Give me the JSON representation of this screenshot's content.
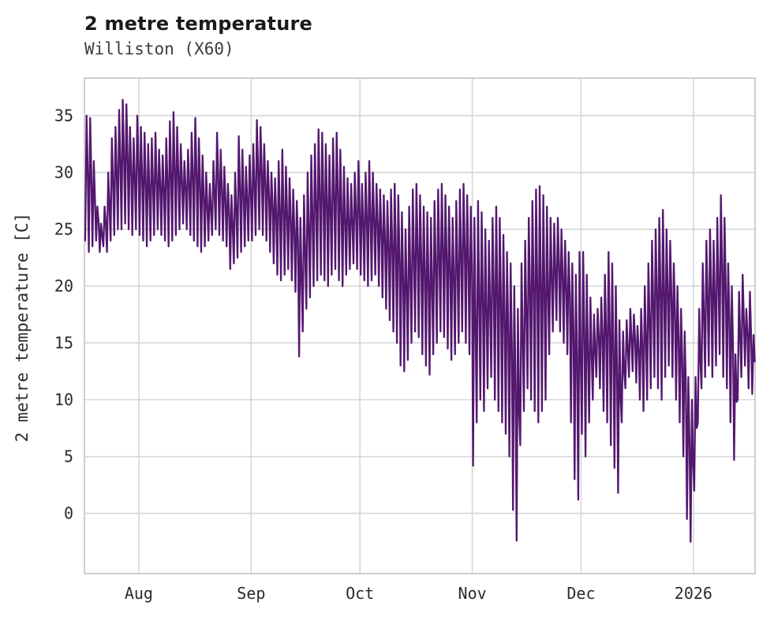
{
  "header": {
    "title": "2 metre temperature",
    "subtitle": "Williston (X60)"
  },
  "chart_data": {
    "type": "line",
    "title": "2 metre temperature",
    "subtitle": "Williston (X60)",
    "xlabel": "",
    "ylabel": "2 metre temperature [C]",
    "legend": "none",
    "grid": "on",
    "line_color": "#53176e",
    "grid_color": "#d6d6d6",
    "border_color": "#c9c9c9",
    "ylim": [
      -5.3,
      38.3
    ],
    "y_ticks": [
      0,
      5,
      10,
      15,
      20,
      25,
      30,
      35
    ],
    "x_ticks": [
      {
        "label": "Aug",
        "day": 15
      },
      {
        "label": "Sep",
        "day": 46
      },
      {
        "label": "Oct",
        "day": 76
      },
      {
        "label": "Nov",
        "day": 107
      },
      {
        "label": "Dec",
        "day": 137
      },
      {
        "label": "2026",
        "day": 168
      }
    ],
    "x_range_days": [
      0,
      185
    ],
    "x_start": "mid-July 2025",
    "x_end": "mid-January 2026",
    "series_note": "daily minimum and maximum 2 m temperature envelope, day 0 = ~17 July",
    "daily_min": [
      24,
      23,
      23.5,
      24,
      23,
      23.5,
      23,
      24,
      24.5,
      25,
      25,
      25.5,
      25,
      24.5,
      25,
      24.5,
      24,
      23.5,
      24,
      24.5,
      25,
      24.5,
      24,
      23.5,
      24,
      24.5,
      25,
      25.5,
      25,
      24.5,
      24,
      23.5,
      23,
      23.5,
      24,
      24.5,
      25,
      24.5,
      24,
      23.5,
      21.5,
      22,
      22.5,
      23,
      23.5,
      24,
      24,
      24.5,
      25,
      24.5,
      24,
      23,
      22,
      21,
      20.5,
      21,
      21.5,
      20.5,
      19.5,
      13.8,
      16,
      18,
      19,
      20,
      20.5,
      21,
      20.5,
      20,
      21,
      21.5,
      20.5,
      20,
      21,
      21.5,
      22,
      21.5,
      21,
      20.5,
      20,
      20.5,
      21,
      20,
      19,
      18,
      17,
      16,
      15,
      13,
      12.5,
      13.5,
      15,
      16,
      15.5,
      14,
      13,
      12.2,
      14,
      15,
      16,
      15.5,
      14.5,
      13.5,
      14,
      15,
      16,
      15,
      14,
      4.2,
      8,
      10,
      9,
      11,
      12,
      10,
      9,
      8,
      7,
      5,
      0.3,
      -2.4,
      6,
      9,
      11,
      10,
      9,
      8,
      9,
      10,
      14,
      16,
      17,
      16,
      15,
      14,
      8,
      3,
      1.2,
      7,
      5,
      8,
      10,
      12,
      11,
      9,
      8,
      6,
      4,
      1.8,
      8,
      11,
      12,
      12.5,
      11.5,
      10,
      9,
      10,
      11,
      12,
      11,
      10,
      12,
      13,
      12,
      10,
      8,
      5,
      -0.5,
      -2.5,
      2,
      8,
      11,
      12,
      13,
      12,
      13,
      14,
      12,
      11,
      8,
      4.7,
      10,
      12,
      13,
      11,
      10.5
    ],
    "daily_max": [
      35,
      34.8,
      31,
      27,
      25.5,
      27,
      30,
      33,
      34,
      35.5,
      36.4,
      36,
      34,
      33,
      35,
      34,
      33.5,
      32.5,
      33,
      33.5,
      32,
      31.5,
      33,
      34.5,
      35.3,
      34,
      32.5,
      31,
      32,
      33.5,
      34.8,
      33,
      31.5,
      30,
      29,
      31,
      33.5,
      32,
      30.5,
      29,
      28,
      30,
      33.2,
      32,
      30.5,
      31.5,
      32.5,
      34.6,
      34,
      32.5,
      31,
      30,
      29.5,
      31,
      32,
      30.5,
      29.5,
      28.5,
      27.5,
      26,
      28,
      30,
      31.5,
      32.5,
      33.8,
      33.5,
      32.5,
      31.5,
      33,
      33.5,
      32,
      30.5,
      29.5,
      29,
      30,
      31,
      29,
      30,
      31,
      30,
      29,
      28.5,
      28,
      27.5,
      28.5,
      29,
      28,
      26.5,
      25,
      27,
      28.5,
      29,
      28,
      27,
      26.5,
      26,
      27.5,
      28.5,
      29,
      28,
      27,
      26,
      27.5,
      28.5,
      29,
      28,
      27,
      26,
      27.5,
      26.5,
      25,
      24,
      26,
      27,
      26,
      24.5,
      23,
      22,
      20,
      18,
      22,
      24,
      26,
      27.5,
      28.5,
      28.8,
      28,
      27,
      26,
      25.5,
      26,
      25,
      24,
      23,
      22,
      21,
      23,
      23,
      21,
      19,
      17.5,
      18,
      19,
      21,
      23,
      22,
      20,
      17,
      16,
      17,
      18,
      17.5,
      16.5,
      18,
      20,
      22,
      24,
      25,
      26,
      26.7,
      25,
      24,
      22,
      20,
      18,
      16,
      12,
      10,
      12,
      18,
      22,
      24,
      25,
      24,
      26,
      28,
      26,
      22,
      20,
      14,
      19.5,
      21,
      18,
      19.5,
      15.7
    ]
  }
}
